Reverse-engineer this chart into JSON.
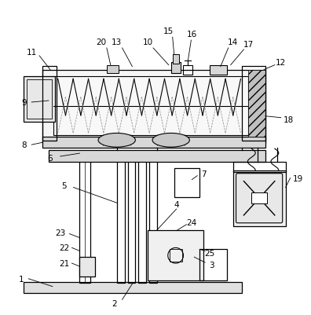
{
  "bg_color": "#ffffff",
  "fig_width": 3.96,
  "fig_height": 4.02,
  "dpi": 100,
  "lw": 0.9
}
